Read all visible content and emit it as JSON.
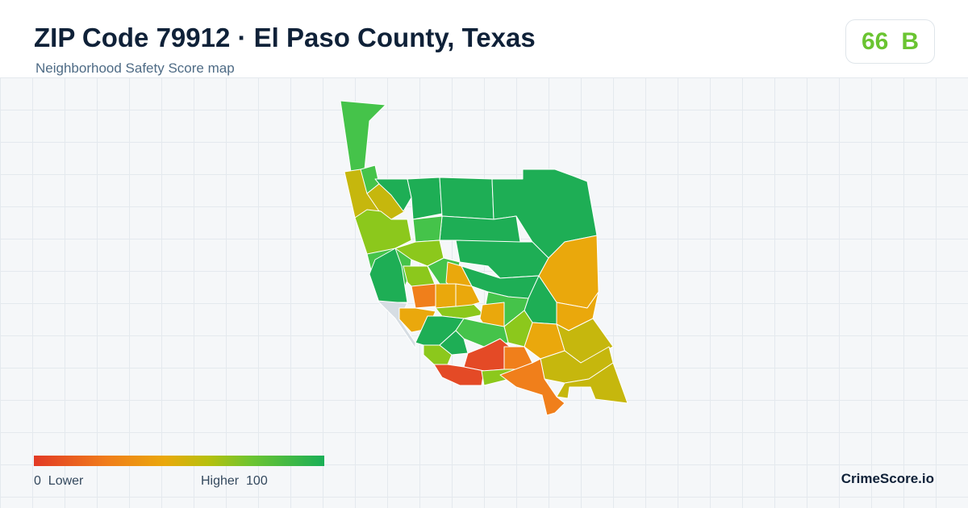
{
  "header": {
    "title": "ZIP Code 79912 · El Paso County, Texas",
    "subtitle": "Neighborhood Safety Score map"
  },
  "score": {
    "value": "66",
    "grade": "B",
    "color": "#6ac431"
  },
  "legend": {
    "min": "0",
    "min_label": "Lower",
    "max_label": "Higher",
    "max": "100",
    "colors": [
      "#e23a25",
      "#f07d1b",
      "#eaa80c",
      "#b7c00d",
      "#6cc431",
      "#1aaf57"
    ]
  },
  "brand": "CrimeScore.io",
  "map": {
    "region_colors": {
      "red": "#e44a26",
      "orange": "#f07f1b",
      "amber": "#eaa80c",
      "olive": "#c6b70d",
      "yellow_green": "#8cc81c",
      "green": "#45c34a",
      "emerald": "#1eae55",
      "no_data": "#d6dde3"
    }
  }
}
